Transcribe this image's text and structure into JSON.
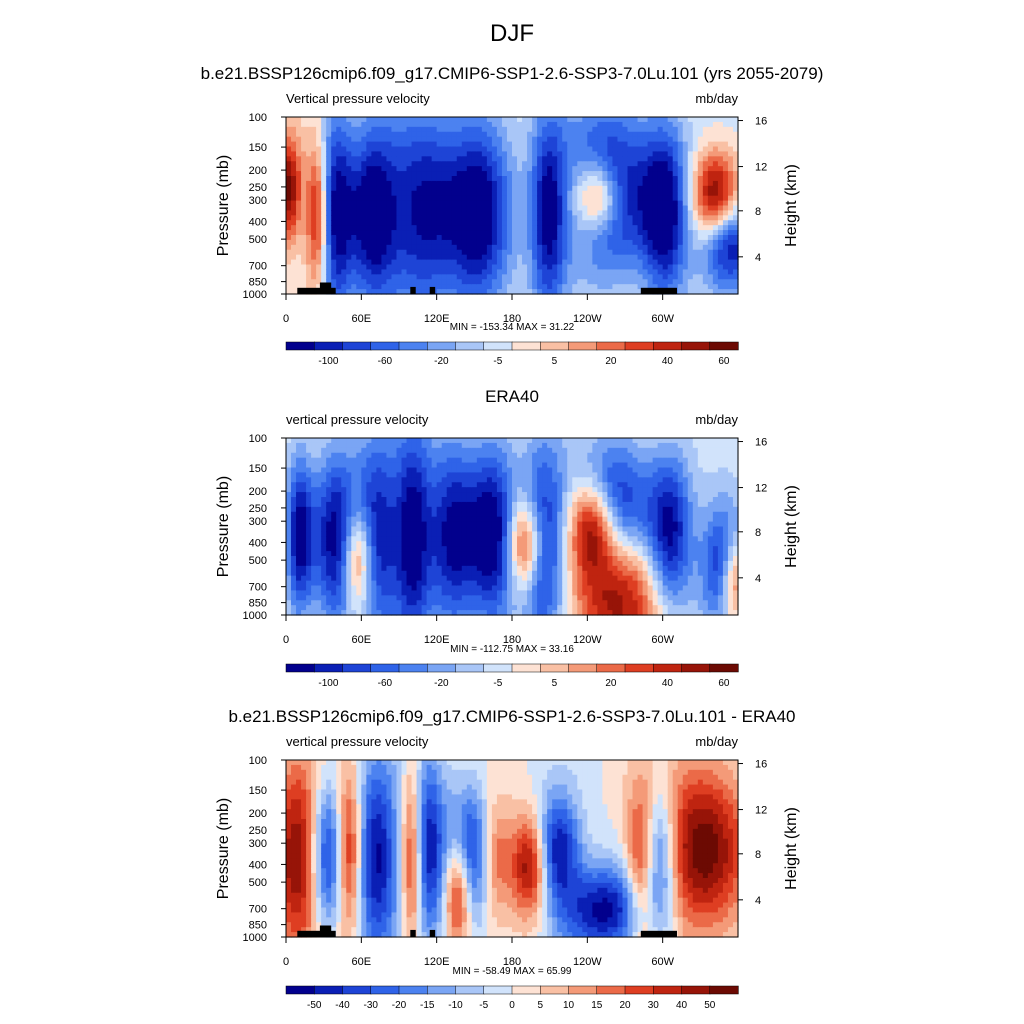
{
  "figure": {
    "title": "DJF"
  },
  "chart_data": [
    {
      "type": "heatmap",
      "title": "b.e21.BSSP126cmip6.f09_g17.CMIP6-SSP1-2.6-SSP3-7.0Lu.101 (yrs 2055-2079)",
      "left_title": "Vertical pressure velocity",
      "right_title": "mb/day",
      "ylabel": "Pressure (mb)",
      "ylabel_right": "Height (km)",
      "x_ticks": [
        "0",
        "60E",
        "120E",
        "180",
        "120W",
        "60W"
      ],
      "y_ticks": [
        "100",
        "150",
        "200",
        "250",
        "300",
        "400",
        "500",
        "700",
        "850",
        "1000"
      ],
      "y_ticks_right": [
        "4",
        "8",
        "12",
        "16"
      ],
      "stats": "MIN = -153.34  MAX =  31.22",
      "colorbar_labels": [
        "-100",
        "-60",
        "-20",
        "-5",
        "5",
        "20",
        "40",
        "60"
      ],
      "colorbar_colors": [
        "#02008d",
        "#0a1fb5",
        "#1e44d6",
        "#2f63e8",
        "#4c82f0",
        "#7aa5f4",
        "#a9c6f7",
        "#d1e3fb",
        "#fde2d4",
        "#f9c0a4",
        "#f49a78",
        "#eb6a48",
        "#de3e22",
        "#bf2410",
        "#971408",
        "#6c0a03"
      ],
      "fields": {
        "blue": [
          [
            0.11,
            0.55,
            0.04,
            0.65
          ],
          [
            0.19,
            0.55,
            0.05,
            0.5
          ],
          [
            0.3,
            0.52,
            0.09,
            0.55
          ],
          [
            0.43,
            0.55,
            0.07,
            0.6
          ],
          [
            0.58,
            0.55,
            0.04,
            0.55
          ],
          [
            0.72,
            0.4,
            0.1,
            0.5
          ],
          [
            0.84,
            0.55,
            0.05,
            0.5
          ],
          [
            0.98,
            0.72,
            0.06,
            0.25
          ]
        ],
        "red": [
          [
            0.005,
            0.4,
            0.03,
            0.3
          ],
          [
            0.07,
            0.55,
            0.025,
            0.4
          ],
          [
            0.69,
            0.45,
            0.05,
            0.2
          ],
          [
            0.95,
            0.45,
            0.05,
            0.25
          ]
        ]
      }
    },
    {
      "type": "heatmap",
      "title": "ERA40",
      "left_title": "vertical pressure velocity",
      "right_title": "mb/day",
      "ylabel": "Pressure (mb)",
      "ylabel_right": "Height (km)",
      "x_ticks": [
        "0",
        "60E",
        "120E",
        "180",
        "120W",
        "60W"
      ],
      "y_ticks": [
        "100",
        "150",
        "200",
        "250",
        "300",
        "400",
        "500",
        "700",
        "850",
        "1000"
      ],
      "y_ticks_right": [
        "4",
        "8",
        "12",
        "16"
      ],
      "stats": "MIN = -112.75  MAX =  33.16",
      "colorbar_labels": [
        "-100",
        "-60",
        "-20",
        "-5",
        "5",
        "20",
        "40",
        "60"
      ],
      "colorbar_colors": [
        "#02008d",
        "#0a1fb5",
        "#1e44d6",
        "#2f63e8",
        "#4c82f0",
        "#7aa5f4",
        "#a9c6f7",
        "#d1e3fb",
        "#fde2d4",
        "#f9c0a4",
        "#f49a78",
        "#eb6a48",
        "#de3e22",
        "#bf2410",
        "#971408",
        "#6c0a03"
      ],
      "fields": {
        "blue": [
          [
            0.03,
            0.55,
            0.03,
            0.45
          ],
          [
            0.11,
            0.58,
            0.05,
            0.55
          ],
          [
            0.2,
            0.55,
            0.05,
            0.55
          ],
          [
            0.28,
            0.55,
            0.04,
            0.6
          ],
          [
            0.37,
            0.55,
            0.06,
            0.55
          ],
          [
            0.46,
            0.55,
            0.05,
            0.55
          ],
          [
            0.57,
            0.6,
            0.05,
            0.55
          ],
          [
            0.73,
            0.4,
            0.08,
            0.4
          ],
          [
            0.85,
            0.55,
            0.05,
            0.45
          ],
          [
            0.97,
            0.7,
            0.05,
            0.35
          ]
        ],
        "red": [
          [
            0.16,
            0.68,
            0.035,
            0.3
          ],
          [
            0.53,
            0.6,
            0.04,
            0.25
          ],
          [
            0.68,
            0.5,
            0.05,
            0.25
          ],
          [
            0.73,
            0.85,
            0.1,
            0.4
          ],
          [
            0.99,
            0.8,
            0.03,
            0.25
          ]
        ]
      }
    },
    {
      "type": "heatmap",
      "title": "b.e21.BSSP126cmip6.f09_g17.CMIP6-SSP1-2.6-SSP3-7.0Lu.101 - ERA40",
      "left_title": "vertical pressure velocity",
      "right_title": "mb/day",
      "ylabel": "Pressure (mb)",
      "ylabel_right": "Height (km)",
      "x_ticks": [
        "0",
        "60E",
        "120E",
        "180",
        "120W",
        "60W"
      ],
      "y_ticks": [
        "100",
        "150",
        "200",
        "250",
        "300",
        "400",
        "500",
        "700",
        "850",
        "1000"
      ],
      "y_ticks_right": [
        "4",
        "8",
        "12",
        "16"
      ],
      "stats": "MIN = -58.49  MAX =  65.99",
      "colorbar_labels": [
        "-50",
        "-40",
        "-30",
        "-20",
        "-15",
        "-10",
        "-5",
        "0",
        "5",
        "10",
        "15",
        "20",
        "30",
        "40",
        "50"
      ],
      "colorbar_colors": [
        "#02008d",
        "#0a1fb5",
        "#1e44d6",
        "#2f63e8",
        "#4c82f0",
        "#7aa5f4",
        "#a9c6f7",
        "#d1e3fb",
        "#fde2d4",
        "#f9c0a4",
        "#f49a78",
        "#eb6a48",
        "#de3e22",
        "#bf2410",
        "#971408",
        "#6c0a03"
      ],
      "fields": {
        "blue": [
          [
            0.09,
            0.55,
            0.04,
            0.45
          ],
          [
            0.2,
            0.55,
            0.05,
            0.55
          ],
          [
            0.31,
            0.5,
            0.04,
            0.5
          ],
          [
            0.42,
            0.55,
            0.06,
            0.4
          ],
          [
            0.6,
            0.5,
            0.05,
            0.3
          ],
          [
            0.71,
            0.85,
            0.1,
            0.25
          ],
          [
            0.82,
            0.55,
            0.04,
            0.4
          ]
        ],
        "red": [
          [
            0.03,
            0.55,
            0.06,
            0.55
          ],
          [
            0.14,
            0.52,
            0.03,
            0.45
          ],
          [
            0.28,
            0.55,
            0.025,
            0.55
          ],
          [
            0.38,
            0.75,
            0.03,
            0.3
          ],
          [
            0.46,
            0.55,
            0.04,
            0.35
          ],
          [
            0.54,
            0.6,
            0.04,
            0.3
          ],
          [
            0.79,
            0.6,
            0.035,
            0.45
          ],
          [
            0.92,
            0.5,
            0.1,
            0.5
          ]
        ]
      }
    }
  ]
}
